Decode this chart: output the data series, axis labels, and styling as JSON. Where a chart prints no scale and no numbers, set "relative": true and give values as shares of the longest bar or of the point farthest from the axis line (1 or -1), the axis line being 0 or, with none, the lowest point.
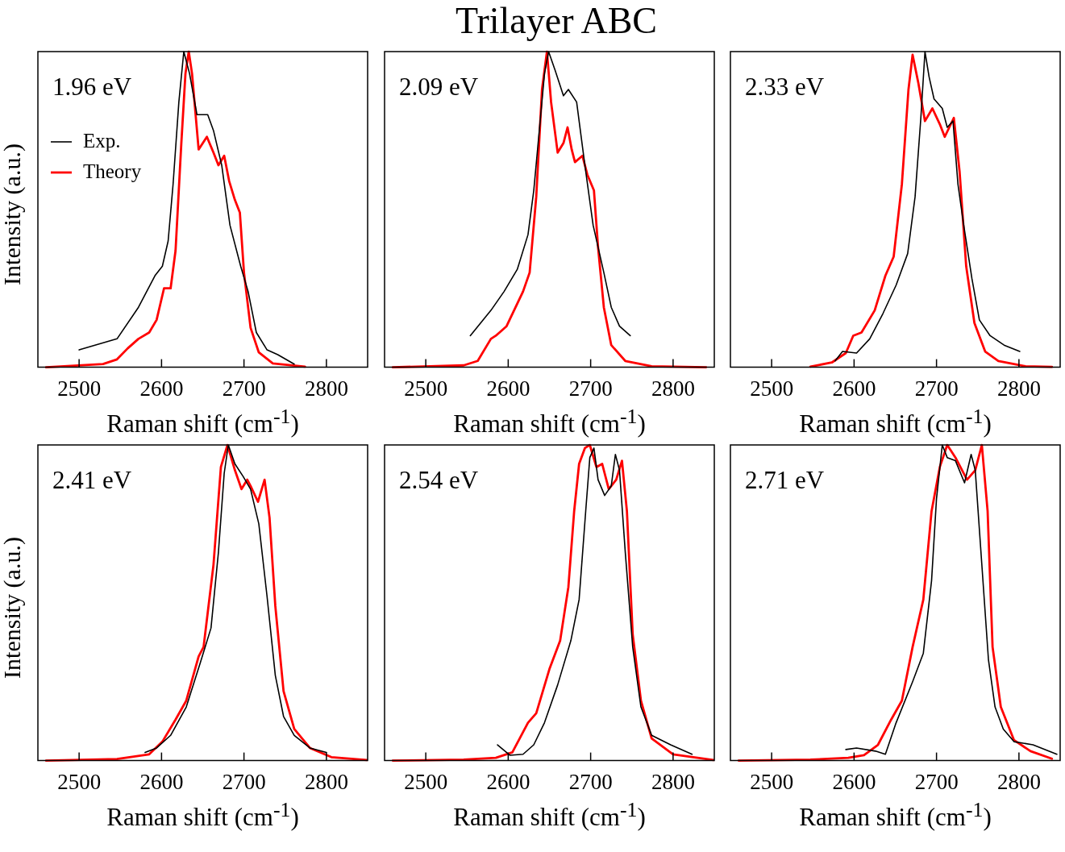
{
  "chart_data": [
    {
      "type": "other",
      "title": "Trilayer ABC"
    },
    {
      "type": "line",
      "ylabel": "Intensity (a.u.)",
      "xlabel": "Raman shift (cm$^{-1}$)",
      "annotations": [
        "1.96 eV"
      ],
      "legend": "top left",
      "relative": true,
      "xlim": [
        2450,
        2850
      ],
      "xticks": [
        2500,
        2600,
        2700,
        2800
      ],
      "series": [
        {
          "name": "Exp.",
          "color": "#000000",
          "x": [
            2500,
            2546,
            2572,
            2592,
            2601,
            2608,
            2614,
            2621,
            2627,
            2634,
            2643,
            2656,
            2663,
            2673,
            2683,
            2696,
            2705,
            2715,
            2728,
            2741,
            2761
          ],
          "values": [
            0.055,
            0.09,
            0.19,
            0.29,
            0.32,
            0.4,
            0.58,
            0.84,
            1.0,
            0.93,
            0.8,
            0.8,
            0.75,
            0.64,
            0.45,
            0.32,
            0.24,
            0.11,
            0.055,
            0.04,
            0.01
          ]
        },
        {
          "name": "Theory",
          "color": "#ff0000",
          "x": [
            2460,
            2529,
            2546,
            2559,
            2572,
            2585,
            2594,
            2603,
            2611,
            2617,
            2624,
            2629,
            2633,
            2637,
            2645,
            2655,
            2663,
            2669,
            2676,
            2682,
            2689,
            2695,
            2700,
            2708,
            2718,
            2735,
            2774
          ],
          "values": [
            0,
            0.01,
            0.025,
            0.06,
            0.09,
            0.11,
            0.15,
            0.25,
            0.25,
            0.37,
            0.71,
            0.93,
            1.0,
            0.93,
            0.69,
            0.73,
            0.68,
            0.64,
            0.67,
            0.59,
            0.53,
            0.49,
            0.3,
            0.125,
            0.047,
            0.012,
            0.002
          ]
        }
      ]
    },
    {
      "type": "line",
      "xlabel": "Raman shift (cm$^{-1}$)",
      "annotations": [
        "2.09 eV"
      ],
      "relative": true,
      "xlim": [
        2450,
        2850
      ],
      "xticks": [
        2500,
        2600,
        2700,
        2800
      ],
      "series": [
        {
          "color": "#000000",
          "x": [
            2554,
            2579,
            2595,
            2611,
            2624,
            2631,
            2637,
            2644,
            2649,
            2657,
            2667,
            2673,
            2683,
            2693,
            2703,
            2716,
            2725,
            2735,
            2748
          ],
          "values": [
            0.1,
            0.18,
            0.24,
            0.31,
            0.42,
            0.56,
            0.73,
            0.93,
            1.0,
            0.94,
            0.86,
            0.88,
            0.84,
            0.64,
            0.45,
            0.3,
            0.19,
            0.13,
            0.1
          ]
        },
        {
          "color": "#ff0000",
          "x": [
            2460,
            2546,
            2563,
            2579,
            2585,
            2598,
            2618,
            2626,
            2634,
            2641,
            2647,
            2652,
            2660,
            2667,
            2672,
            2677,
            2681,
            2690,
            2696,
            2704,
            2709,
            2716,
            2725,
            2742,
            2774,
            2840
          ],
          "values": [
            0,
            0.006,
            0.02,
            0.09,
            0.1,
            0.13,
            0.24,
            0.3,
            0.54,
            0.88,
            1.0,
            0.84,
            0.68,
            0.71,
            0.76,
            0.69,
            0.65,
            0.67,
            0.61,
            0.56,
            0.38,
            0.19,
            0.07,
            0.02,
            0.003,
            0
          ]
        }
      ]
    },
    {
      "type": "line",
      "xlabel": "Raman shift (cm$^{-1}$)",
      "annotations": [
        "2.33 eV"
      ],
      "relative": true,
      "xlim": [
        2450,
        2850
      ],
      "xticks": [
        2500,
        2600,
        2700,
        2800
      ],
      "series": [
        {
          "color": "#000000",
          "x": [
            2577,
            2586,
            2603,
            2619,
            2635,
            2651,
            2665,
            2674,
            2681,
            2686,
            2691,
            2697,
            2707,
            2713,
            2720,
            2726,
            2733,
            2743,
            2752,
            2765,
            2782,
            2801
          ],
          "values": [
            0.02,
            0.05,
            0.045,
            0.09,
            0.17,
            0.26,
            0.36,
            0.54,
            0.79,
            1.0,
            0.92,
            0.85,
            0.82,
            0.76,
            0.78,
            0.58,
            0.45,
            0.28,
            0.15,
            0.1,
            0.07,
            0.05
          ]
        },
        {
          "color": "#ff0000",
          "x": [
            2547,
            2573,
            2590,
            2599,
            2609,
            2625,
            2638,
            2648,
            2658,
            2666,
            2671,
            2678,
            2686,
            2695,
            2704,
            2710,
            2721,
            2728,
            2736,
            2746,
            2759,
            2775,
            2808,
            2840
          ],
          "values": [
            0.002,
            0.015,
            0.045,
            0.1,
            0.11,
            0.18,
            0.29,
            0.35,
            0.58,
            0.88,
            0.99,
            0.9,
            0.78,
            0.82,
            0.77,
            0.73,
            0.79,
            0.62,
            0.32,
            0.14,
            0.05,
            0.02,
            0.003,
            0.001
          ]
        }
      ]
    },
    {
      "type": "line",
      "ylabel": "Intensity (a.u.)",
      "xlabel": "Raman shift (cm$^{-1}$)",
      "annotations": [
        "2.41 eV"
      ],
      "relative": true,
      "xlim": [
        2450,
        2850
      ],
      "xticks": [
        2500,
        2600,
        2700,
        2800
      ],
      "series": [
        {
          "color": "#000000",
          "x": [
            2580,
            2594,
            2611,
            2630,
            2647,
            2660,
            2669,
            2676,
            2681,
            2689,
            2699,
            2708,
            2718,
            2728,
            2738,
            2748,
            2761,
            2780,
            2800
          ],
          "values": [
            0.026,
            0.04,
            0.08,
            0.17,
            0.31,
            0.42,
            0.66,
            0.91,
            1.0,
            0.94,
            0.9,
            0.86,
            0.75,
            0.52,
            0.27,
            0.14,
            0.08,
            0.04,
            0.026
          ]
        },
        {
          "color": "#ff0000",
          "x": [
            2460,
            2546,
            2585,
            2601,
            2617,
            2630,
            2645,
            2651,
            2663,
            2672,
            2680,
            2689,
            2697,
            2704,
            2708,
            2717,
            2725,
            2731,
            2738,
            2748,
            2761,
            2780,
            2806,
            2849
          ],
          "values": [
            0,
            0.005,
            0.02,
            0.06,
            0.13,
            0.19,
            0.33,
            0.36,
            0.62,
            0.93,
            1.0,
            0.92,
            0.86,
            0.89,
            0.87,
            0.82,
            0.89,
            0.77,
            0.49,
            0.22,
            0.1,
            0.04,
            0.011,
            0.002
          ]
        }
      ]
    },
    {
      "type": "line",
      "xlabel": "Raman shift (cm$^{-1}$)",
      "annotations": [
        "2.54 eV"
      ],
      "relative": true,
      "xlim": [
        2450,
        2850
      ],
      "xticks": [
        2500,
        2600,
        2700,
        2800
      ],
      "series": [
        {
          "color": "#000000",
          "x": [
            2587,
            2602,
            2618,
            2631,
            2644,
            2660,
            2676,
            2686,
            2694,
            2699,
            2704,
            2709,
            2717,
            2725,
            2730,
            2735,
            2742,
            2751,
            2761,
            2774,
            2797,
            2823
          ],
          "values": [
            0.05,
            0.017,
            0.02,
            0.05,
            0.12,
            0.24,
            0.38,
            0.51,
            0.79,
            0.96,
            0.99,
            0.89,
            0.84,
            0.87,
            0.97,
            0.92,
            0.66,
            0.36,
            0.17,
            0.08,
            0.05,
            0.02
          ]
        },
        {
          "color": "#ff0000",
          "x": [
            2460,
            2546,
            2585,
            2605,
            2624,
            2634,
            2650,
            2663,
            2673,
            2680,
            2686,
            2693,
            2699,
            2707,
            2714,
            2722,
            2731,
            2738,
            2744,
            2751,
            2761,
            2774,
            2800,
            2849
          ],
          "values": [
            0,
            0.003,
            0.009,
            0.026,
            0.12,
            0.15,
            0.29,
            0.38,
            0.55,
            0.79,
            0.94,
            0.99,
            1.0,
            0.93,
            0.94,
            0.86,
            0.89,
            0.95,
            0.79,
            0.4,
            0.19,
            0.07,
            0.02,
            0.002
          ]
        }
      ]
    },
    {
      "type": "line",
      "xlabel": "Raman shift (cm$^{-1}$)",
      "annotations": [
        "2.71 eV"
      ],
      "relative": true,
      "xlim": [
        2450,
        2850
      ],
      "xticks": [
        2500,
        2600,
        2700,
        2800
      ],
      "series": [
        {
          "color": "#000000",
          "x": [
            2590,
            2603,
            2626,
            2638,
            2651,
            2671,
            2684,
            2694,
            2700,
            2707,
            2713,
            2723,
            2734,
            2742,
            2747,
            2755,
            2763,
            2771,
            2781,
            2794,
            2817,
            2846
          ],
          "values": [
            0.035,
            0.04,
            0.03,
            0.02,
            0.12,
            0.25,
            0.34,
            0.57,
            0.83,
            1.0,
            0.96,
            0.95,
            0.88,
            0.97,
            0.92,
            0.62,
            0.32,
            0.17,
            0.1,
            0.06,
            0.05,
            0.02
          ]
        },
        {
          "color": "#ff0000",
          "x": [
            2460,
            2547,
            2593,
            2612,
            2629,
            2645,
            2658,
            2671,
            2684,
            2694,
            2704,
            2713,
            2723,
            2737,
            2747,
            2755,
            2762,
            2768,
            2778,
            2794,
            2814,
            2840
          ],
          "values": [
            0,
            0.003,
            0.009,
            0.017,
            0.05,
            0.13,
            0.19,
            0.36,
            0.51,
            0.79,
            0.93,
            1.0,
            0.96,
            0.89,
            0.92,
            1.0,
            0.79,
            0.36,
            0.17,
            0.065,
            0.03,
            0.006
          ]
        }
      ]
    }
  ]
}
